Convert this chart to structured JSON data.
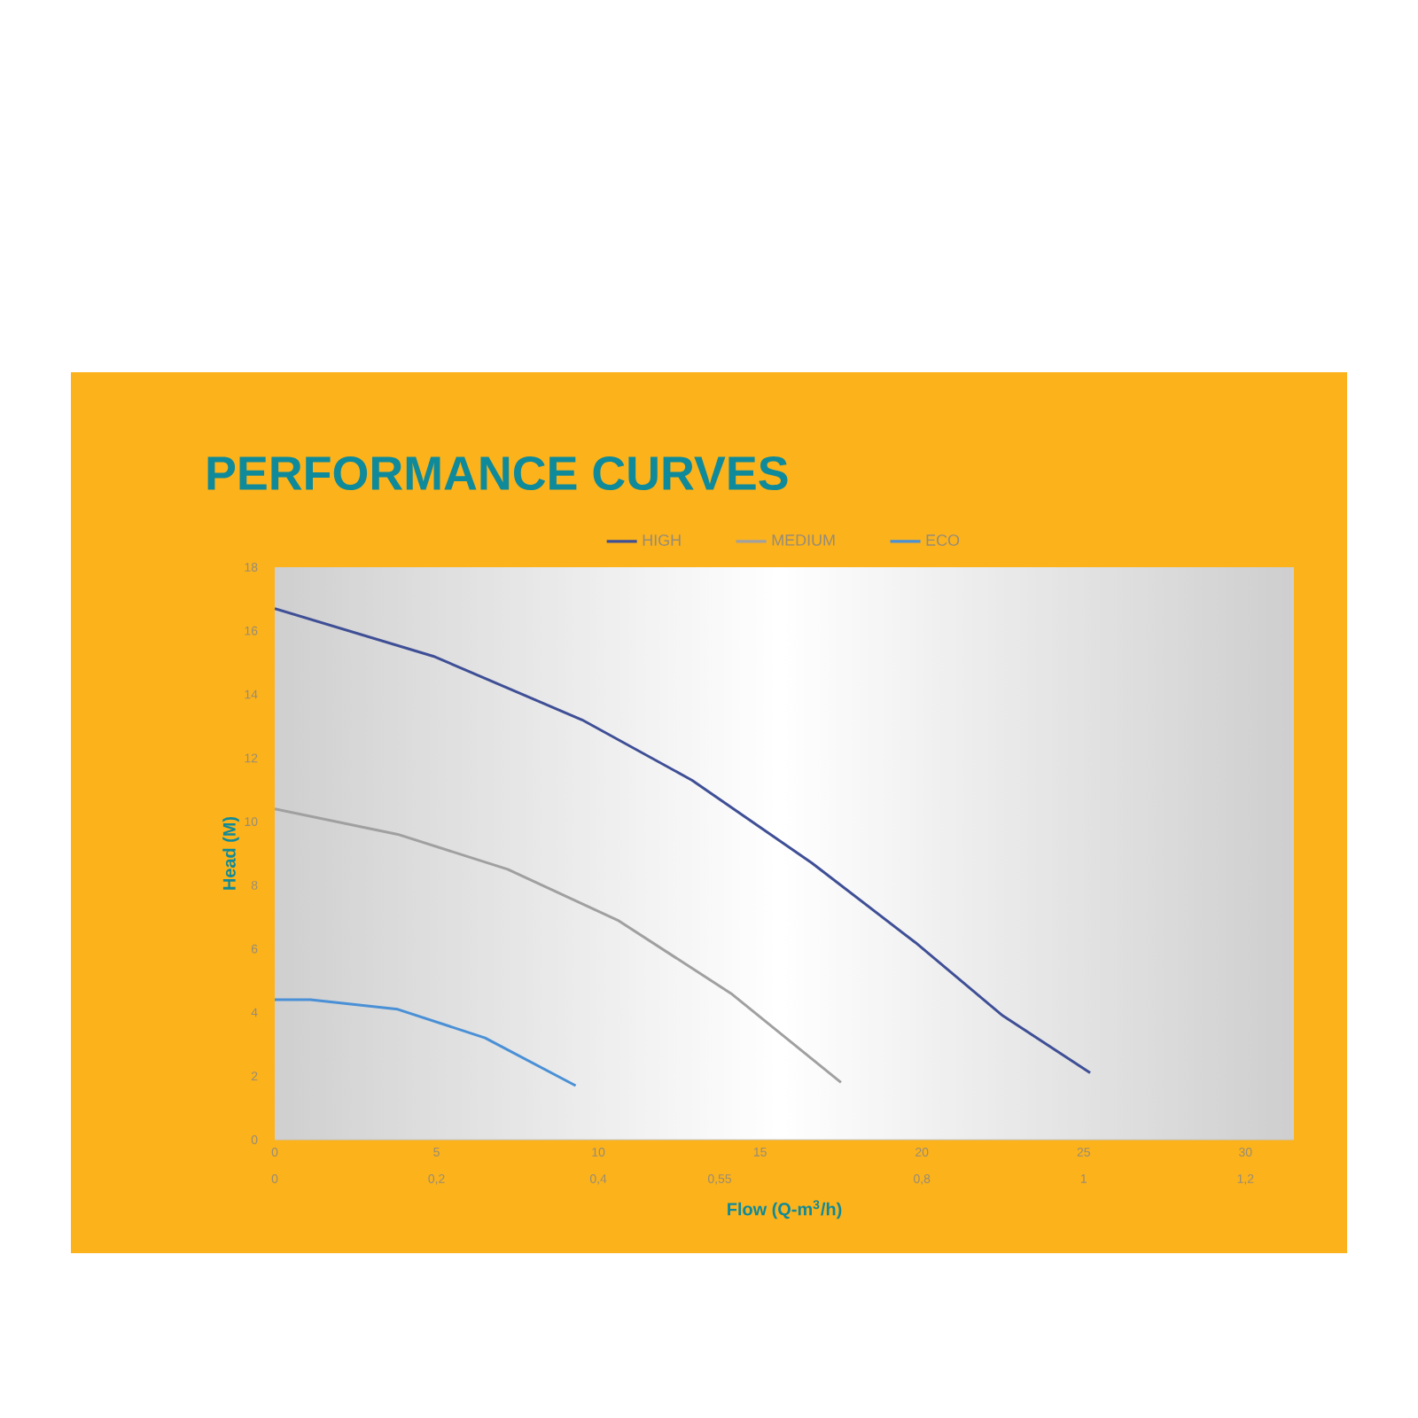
{
  "chart_data": {
    "type": "line",
    "title": "PERFORMANCE CURVES",
    "xlabel": "Flow (Q-m$^{3}$/h)",
    "ylabel": "Head (M)",
    "series": [
      {
        "name": "HIGH",
        "color": "#3f4f96",
        "x": [
          0,
          4.9,
          9.5,
          12.9,
          16.6,
          19.8,
          22.5,
          25.2
        ],
        "values": [
          16.7,
          15.2,
          13.2,
          11.3,
          8.7,
          6.2,
          3.9,
          2.1
        ]
      },
      {
        "name": "MEDIUM",
        "color": "#a0a0a0",
        "x": [
          0,
          3.8,
          7.2,
          10.6,
          14.1,
          17.5
        ],
        "values": [
          10.4,
          9.6,
          8.5,
          6.9,
          4.6,
          1.8
        ]
      },
      {
        "name": "ECO",
        "color": "#4a90d6",
        "x": [
          0,
          1.1,
          3.8,
          6.5,
          9.3
        ],
        "values": [
          4.4,
          4.4,
          4.1,
          3.2,
          1.7
        ]
      }
    ],
    "xlim": [
      0,
      31.5
    ],
    "ylim": [
      0,
      18
    ],
    "xticks": [
      0,
      5,
      10,
      15,
      20,
      25,
      30
    ],
    "yticks": [
      0,
      2,
      4,
      6,
      8,
      10,
      12,
      14,
      16,
      18
    ],
    "x2lim": [
      0,
      1.26
    ],
    "x2ticks": [
      0,
      {
        "value": 0.2,
        "label": "0,2"
      },
      {
        "value": 0.4,
        "label": "0,4"
      },
      {
        "value": 0.55,
        "label": "0,55"
      },
      {
        "value": 0.8,
        "label": "0,8"
      },
      1,
      {
        "value": 1.2,
        "label": "1,2"
      }
    ],
    "legend": "top",
    "marker": "none",
    "line_style": "solid"
  }
}
